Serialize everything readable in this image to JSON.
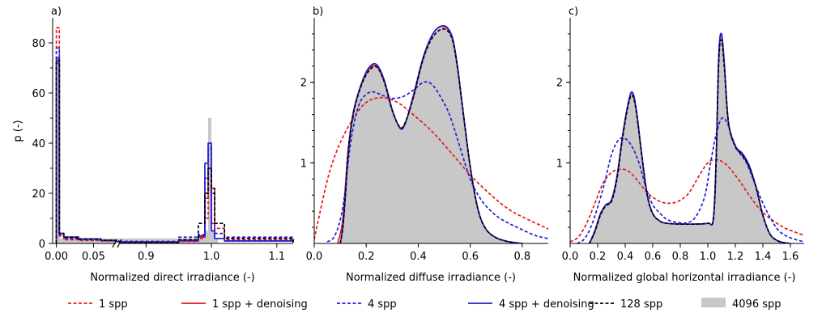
{
  "legend": [
    {
      "label": "1 spp",
      "color": "#e41a1c",
      "style": "dashed"
    },
    {
      "label": "1 spp + denoising",
      "color": "#e41a1c",
      "style": "solid"
    },
    {
      "label": "4 spp",
      "color": "#1f1fd6",
      "style": "dashed"
    },
    {
      "label": "4 spp + denoising",
      "color": "#1f1fd6",
      "style": "solid"
    },
    {
      "label": "128 spp",
      "color": "#000000",
      "style": "dashed"
    },
    {
      "label": "4096 spp",
      "color": "#c8c8c8",
      "style": "fill"
    }
  ],
  "chart_data": [
    {
      "type": "line",
      "panel_label": "a)",
      "xlabel": "Normalized direct irradiance (-)",
      "ylabel": "p (-)",
      "broken_x_axis": true,
      "x_segments": [
        {
          "xlim": [
            -0.005,
            0.08
          ],
          "ticks": [
            "0.00",
            "0.05"
          ]
        },
        {
          "xlim": [
            0.86,
            1.125
          ],
          "ticks": [
            "0.9",
            "1.0",
            "1.1"
          ]
        }
      ],
      "ylim": [
        0,
        90
      ],
      "yticks": [
        "0",
        "20",
        "40",
        "60",
        "80"
      ],
      "series": [
        {
          "name": "4096 spp",
          "kind": "histogram",
          "x": [
            0.0,
            0.005,
            0.98,
            0.99,
            0.995,
            1.0,
            1.005,
            1.01
          ],
          "y": [
            74,
            2,
            2,
            5,
            50,
            5,
            2,
            0
          ]
        },
        {
          "name": "1 spp",
          "x": [
            0.0,
            0.002,
            0.004,
            0.01,
            0.03,
            0.06,
            0.08,
            0.86,
            0.95,
            0.98,
            0.99,
            0.995,
            1.0,
            1.005,
            1.02,
            1.125
          ],
          "y": [
            86,
            86,
            3,
            1.5,
            1.2,
            1.0,
            0.8,
            0.3,
            0.8,
            2,
            10,
            30,
            22,
            6,
            1.5,
            0.3
          ]
        },
        {
          "name": "1 spp + denoising",
          "x": [
            0.0,
            0.002,
            0.004,
            0.01,
            0.03,
            0.06,
            0.08,
            0.86,
            0.95,
            0.98,
            0.99,
            0.995,
            1.0,
            1.005,
            1.02,
            1.125
          ],
          "y": [
            72,
            72,
            4,
            2.5,
            1.8,
            1.2,
            0.8,
            0.4,
            1.0,
            2.5,
            18,
            30,
            8,
            2,
            1.0,
            0.4
          ]
        },
        {
          "name": "4 spp",
          "x": [
            0.0,
            0.002,
            0.004,
            0.01,
            0.03,
            0.06,
            0.08,
            0.86,
            0.95,
            0.98,
            0.99,
            0.995,
            1.0,
            1.005,
            1.02,
            1.125
          ],
          "y": [
            78,
            78,
            3.5,
            2,
            1.5,
            1.2,
            0.8,
            0.8,
            2.5,
            3.5,
            26,
            38,
            20,
            4,
            2.5,
            1.0
          ]
        },
        {
          "name": "4 spp + denoising",
          "x": [
            0.0,
            0.002,
            0.004,
            0.01,
            0.03,
            0.06,
            0.08,
            0.86,
            0.95,
            0.98,
            0.99,
            0.995,
            1.0,
            1.005,
            1.02,
            1.125
          ],
          "y": [
            74,
            74,
            4,
            2.5,
            1.8,
            1.2,
            0.8,
            0.5,
            1.2,
            3,
            32,
            40,
            5,
            2,
            1.0,
            0.5
          ]
        },
        {
          "name": "128 spp",
          "x": [
            0.0,
            0.002,
            0.004,
            0.01,
            0.03,
            0.06,
            0.08,
            0.86,
            0.95,
            0.98,
            0.99,
            0.995,
            1.0,
            1.005,
            1.02,
            1.125
          ],
          "y": [
            73,
            73,
            4,
            2.5,
            1.8,
            1.2,
            0.8,
            0.5,
            1.5,
            8,
            20,
            30,
            22,
            8,
            2,
            0.5
          ]
        }
      ]
    },
    {
      "type": "line",
      "panel_label": "b)",
      "xlabel": "Normalized diffuse irradiance (-)",
      "xlim": [
        0.0,
        0.9
      ],
      "xticks": [
        "0.0",
        "0.2",
        "0.4",
        "0.6",
        "0.8"
      ],
      "ylim": [
        0,
        2.8
      ],
      "yticks": [
        "1",
        "2"
      ],
      "series": [
        {
          "name": "4096 spp",
          "kind": "area",
          "x": [
            0.1,
            0.11,
            0.12,
            0.13,
            0.15,
            0.18,
            0.21,
            0.24,
            0.27,
            0.3,
            0.33,
            0.35,
            0.38,
            0.42,
            0.46,
            0.5,
            0.53,
            0.55,
            0.57,
            0.6,
            0.63,
            0.66,
            0.7,
            0.75,
            0.8
          ],
          "y": [
            0.0,
            0.2,
            0.6,
            1.1,
            1.6,
            1.95,
            2.15,
            2.2,
            2.0,
            1.65,
            1.44,
            1.5,
            1.8,
            2.3,
            2.6,
            2.68,
            2.55,
            2.2,
            1.7,
            0.95,
            0.42,
            0.18,
            0.07,
            0.02,
            0.0
          ]
        },
        {
          "name": "1 spp",
          "x": [
            0.0,
            0.03,
            0.06,
            0.1,
            0.15,
            0.2,
            0.26,
            0.32,
            0.38,
            0.45,
            0.52,
            0.6,
            0.68,
            0.75,
            0.82,
            0.9
          ],
          "y": [
            0.05,
            0.5,
            0.9,
            1.25,
            1.55,
            1.75,
            1.81,
            1.75,
            1.6,
            1.4,
            1.15,
            0.85,
            0.6,
            0.42,
            0.3,
            0.18
          ]
        },
        {
          "name": "1 spp + denoising",
          "x": [
            0.09,
            0.11,
            0.13,
            0.15,
            0.18,
            0.21,
            0.24,
            0.27,
            0.3,
            0.33,
            0.35,
            0.38,
            0.42,
            0.46,
            0.5,
            0.53,
            0.55,
            0.57,
            0.6,
            0.63,
            0.66,
            0.7,
            0.75,
            0.8
          ],
          "y": [
            0.0,
            0.3,
            1.15,
            1.62,
            1.96,
            2.16,
            2.2,
            2.0,
            1.65,
            1.44,
            1.5,
            1.8,
            2.3,
            2.62,
            2.69,
            2.55,
            2.2,
            1.7,
            0.95,
            0.42,
            0.18,
            0.07,
            0.02,
            0.0
          ]
        },
        {
          "name": "4 spp",
          "x": [
            0.05,
            0.08,
            0.11,
            0.14,
            0.17,
            0.2,
            0.23,
            0.26,
            0.3,
            0.34,
            0.38,
            0.42,
            0.45,
            0.48,
            0.52,
            0.56,
            0.6,
            0.64,
            0.68,
            0.72,
            0.78,
            0.85,
            0.9
          ],
          "y": [
            0.02,
            0.1,
            0.45,
            1.25,
            1.7,
            1.85,
            1.88,
            1.84,
            1.8,
            1.82,
            1.9,
            2.0,
            1.98,
            1.85,
            1.6,
            1.2,
            0.8,
            0.55,
            0.4,
            0.3,
            0.2,
            0.1,
            0.06
          ]
        },
        {
          "name": "4 spp + denoising",
          "x": [
            0.1,
            0.11,
            0.12,
            0.13,
            0.15,
            0.18,
            0.21,
            0.24,
            0.27,
            0.3,
            0.33,
            0.35,
            0.38,
            0.42,
            0.46,
            0.5,
            0.53,
            0.55,
            0.57,
            0.6,
            0.63,
            0.66,
            0.7,
            0.75,
            0.8
          ],
          "y": [
            0.0,
            0.2,
            0.6,
            1.1,
            1.62,
            1.97,
            2.18,
            2.22,
            2.02,
            1.66,
            1.43,
            1.49,
            1.82,
            2.32,
            2.62,
            2.7,
            2.57,
            2.22,
            1.7,
            0.95,
            0.42,
            0.18,
            0.07,
            0.02,
            0.0
          ]
        },
        {
          "name": "128 spp",
          "x": [
            0.1,
            0.11,
            0.12,
            0.13,
            0.15,
            0.18,
            0.21,
            0.24,
            0.27,
            0.3,
            0.33,
            0.35,
            0.38,
            0.42,
            0.46,
            0.5,
            0.53,
            0.55,
            0.57,
            0.6,
            0.63,
            0.66,
            0.7,
            0.75,
            0.8
          ],
          "y": [
            0.0,
            0.2,
            0.6,
            1.1,
            1.6,
            1.95,
            2.14,
            2.19,
            2.0,
            1.65,
            1.44,
            1.5,
            1.8,
            2.3,
            2.58,
            2.66,
            2.54,
            2.2,
            1.7,
            0.95,
            0.42,
            0.18,
            0.07,
            0.02,
            0.0
          ]
        }
      ]
    },
    {
      "type": "line",
      "panel_label": "c)",
      "xlabel": "Normalized global horizontal irradiance (-)",
      "xlim": [
        0.0,
        1.7
      ],
      "xticks": [
        "0.0",
        "0.2",
        "0.4",
        "0.6",
        "0.8",
        "1.0",
        "1.2",
        "1.4",
        "1.6"
      ],
      "ylim": [
        0,
        2.8
      ],
      "yticks": [
        "1",
        "2"
      ],
      "series": [
        {
          "name": "4096 spp",
          "kind": "area",
          "x": [
            0.14,
            0.18,
            0.22,
            0.26,
            0.3,
            0.34,
            0.38,
            0.42,
            0.45,
            0.48,
            0.52,
            0.56,
            0.6,
            0.65,
            0.7,
            0.8,
            0.9,
            1.0,
            1.04,
            1.06,
            1.08,
            1.1,
            1.12,
            1.15,
            1.2,
            1.25,
            1.3,
            1.35,
            1.4,
            1.45,
            1.5,
            1.55,
            1.6
          ],
          "y": [
            0.0,
            0.15,
            0.35,
            0.47,
            0.52,
            0.8,
            1.3,
            1.7,
            1.85,
            1.65,
            1.1,
            0.6,
            0.37,
            0.28,
            0.25,
            0.24,
            0.24,
            0.25,
            0.3,
            1.0,
            2.3,
            2.55,
            2.2,
            1.5,
            1.2,
            1.1,
            0.95,
            0.7,
            0.35,
            0.12,
            0.04,
            0.01,
            0.0
          ]
        },
        {
          "name": "1 spp",
          "x": [
            0.0,
            0.06,
            0.12,
            0.18,
            0.24,
            0.3,
            0.36,
            0.42,
            0.48,
            0.55,
            0.62,
            0.7,
            0.78,
            0.86,
            0.94,
            1.0,
            1.05,
            1.1,
            1.15,
            1.22,
            1.3,
            1.38,
            1.46,
            1.55,
            1.62,
            1.7
          ],
          "y": [
            0.02,
            0.08,
            0.25,
            0.5,
            0.75,
            0.88,
            0.92,
            0.9,
            0.8,
            0.65,
            0.55,
            0.5,
            0.52,
            0.62,
            0.85,
            1.0,
            1.04,
            1.02,
            0.95,
            0.8,
            0.6,
            0.42,
            0.3,
            0.2,
            0.15,
            0.1
          ]
        },
        {
          "name": "1 spp + denoising",
          "x": [
            0.14,
            0.18,
            0.22,
            0.26,
            0.3,
            0.34,
            0.38,
            0.42,
            0.45,
            0.48,
            0.52,
            0.56,
            0.6,
            0.65,
            0.7,
            0.8,
            0.9,
            1.0,
            1.04,
            1.06,
            1.08,
            1.1,
            1.12,
            1.15,
            1.2,
            1.25,
            1.3,
            1.35,
            1.4,
            1.45,
            1.5,
            1.55,
            1.6
          ],
          "y": [
            0.0,
            0.15,
            0.36,
            0.48,
            0.53,
            0.82,
            1.32,
            1.72,
            1.87,
            1.66,
            1.1,
            0.6,
            0.37,
            0.28,
            0.25,
            0.24,
            0.24,
            0.25,
            0.3,
            1.0,
            2.32,
            2.58,
            2.22,
            1.5,
            1.2,
            1.1,
            0.96,
            0.7,
            0.35,
            0.12,
            0.04,
            0.01,
            0.0
          ]
        },
        {
          "name": "4 spp",
          "x": [
            0.05,
            0.1,
            0.15,
            0.2,
            0.25,
            0.3,
            0.35,
            0.4,
            0.45,
            0.5,
            0.55,
            0.6,
            0.65,
            0.7,
            0.78,
            0.86,
            0.92,
            0.98,
            1.02,
            1.06,
            1.1,
            1.14,
            1.18,
            1.22,
            1.28,
            1.34,
            1.4,
            1.46,
            1.52,
            1.6,
            1.7
          ],
          "y": [
            0.0,
            0.05,
            0.2,
            0.45,
            0.75,
            1.1,
            1.28,
            1.3,
            1.2,
            1.0,
            0.7,
            0.48,
            0.38,
            0.3,
            0.26,
            0.26,
            0.35,
            0.6,
            1.0,
            1.35,
            1.55,
            1.5,
            1.3,
            1.15,
            1.0,
            0.75,
            0.5,
            0.3,
            0.15,
            0.07,
            0.02
          ]
        },
        {
          "name": "4 spp + denoising",
          "x": [
            0.14,
            0.18,
            0.22,
            0.26,
            0.3,
            0.34,
            0.38,
            0.42,
            0.45,
            0.48,
            0.52,
            0.56,
            0.6,
            0.65,
            0.7,
            0.8,
            0.9,
            1.0,
            1.04,
            1.06,
            1.08,
            1.1,
            1.12,
            1.15,
            1.2,
            1.25,
            1.3,
            1.35,
            1.4,
            1.45,
            1.5,
            1.55,
            1.6
          ],
          "y": [
            0.0,
            0.16,
            0.37,
            0.48,
            0.54,
            0.83,
            1.33,
            1.73,
            1.88,
            1.67,
            1.1,
            0.6,
            0.37,
            0.28,
            0.25,
            0.24,
            0.24,
            0.25,
            0.3,
            1.02,
            2.35,
            2.6,
            2.23,
            1.5,
            1.21,
            1.12,
            0.97,
            0.7,
            0.35,
            0.12,
            0.04,
            0.01,
            0.0
          ]
        },
        {
          "name": "128 spp",
          "x": [
            0.14,
            0.18,
            0.22,
            0.26,
            0.3,
            0.34,
            0.38,
            0.42,
            0.45,
            0.48,
            0.52,
            0.56,
            0.6,
            0.65,
            0.7,
            0.8,
            0.9,
            1.0,
            1.04,
            1.06,
            1.08,
            1.1,
            1.12,
            1.15,
            1.2,
            1.25,
            1.3,
            1.35,
            1.4,
            1.45,
            1.5,
            1.55,
            1.6
          ],
          "y": [
            0.0,
            0.15,
            0.35,
            0.47,
            0.52,
            0.8,
            1.3,
            1.7,
            1.84,
            1.64,
            1.1,
            0.6,
            0.37,
            0.28,
            0.25,
            0.24,
            0.24,
            0.25,
            0.3,
            1.0,
            2.28,
            2.52,
            2.18,
            1.5,
            1.2,
            1.1,
            0.95,
            0.7,
            0.35,
            0.12,
            0.04,
            0.01,
            0.0
          ]
        }
      ]
    }
  ]
}
